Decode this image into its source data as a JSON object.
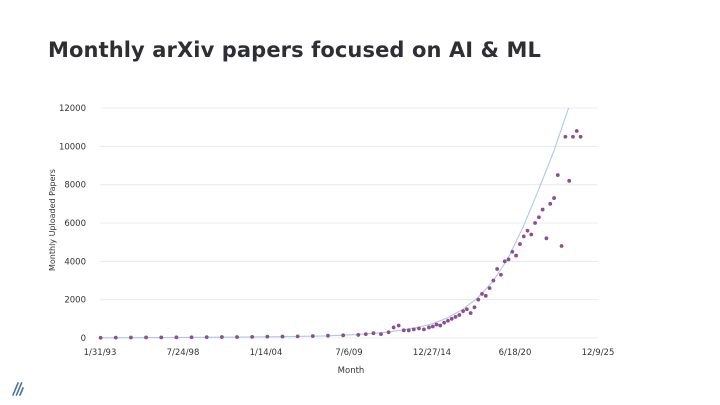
{
  "slide": {
    "title": "Monthly arXiv papers focused on AI & ML",
    "logo_icon": "diagonal-stripes-logo"
  },
  "colors": {
    "points": "#8e4f91",
    "trend": "#aec8e8",
    "grid": "#e6e6e6",
    "text": "#333333",
    "logo": "#4a6fa5"
  },
  "chart_data": {
    "type": "scatter",
    "title": "Monthly arXiv papers focused on AI & ML",
    "xlabel": "Month",
    "ylabel": "Monthly Uploaded Papers",
    "ylim": [
      0,
      12000
    ],
    "yticks": [
      0,
      2000,
      4000,
      6000,
      8000,
      10000,
      12000
    ],
    "yticklabels": [
      "0",
      "2000",
      "4000",
      "6000",
      "8000",
      "10000",
      "12000"
    ],
    "xlim": [
      "1993-01-31",
      "2025-12-09"
    ],
    "xticks": [
      "1993-01-31",
      "1998-07-24",
      "2004-01-14",
      "2009-07-06",
      "2014-12-27",
      "2020-06-18",
      "2025-12-09"
    ],
    "xticklabels": [
      "1/31/93",
      "7/24/98",
      "1/14/04",
      "7/6/09",
      "12/27/14",
      "6/18/20",
      "12/9/25"
    ],
    "grid": "horizontal",
    "legend": "none",
    "series": [
      {
        "kind": "points",
        "points": [
          [
            "1993-02",
            10
          ],
          [
            "1994-02",
            20
          ],
          [
            "1995-02",
            25
          ],
          [
            "1996-02",
            30
          ],
          [
            "1997-02",
            30
          ],
          [
            "1998-02",
            35
          ],
          [
            "1999-02",
            40
          ],
          [
            "2000-02",
            45
          ],
          [
            "2001-02",
            50
          ],
          [
            "2002-02",
            50
          ],
          [
            "2003-02",
            60
          ],
          [
            "2004-02",
            70
          ],
          [
            "2005-02",
            75
          ],
          [
            "2006-02",
            85
          ],
          [
            "2007-02",
            100
          ],
          [
            "2008-02",
            120
          ],
          [
            "2009-02",
            140
          ],
          [
            "2010-02",
            160
          ],
          [
            "2010-08",
            200
          ],
          [
            "2011-02",
            250
          ],
          [
            "2011-08",
            200
          ],
          [
            "2012-02",
            300
          ],
          [
            "2012-06",
            550
          ],
          [
            "2012-10",
            650
          ],
          [
            "2013-02",
            400
          ],
          [
            "2013-06",
            400
          ],
          [
            "2013-10",
            450
          ],
          [
            "2014-02",
            500
          ],
          [
            "2014-06",
            450
          ],
          [
            "2014-10",
            550
          ],
          [
            "2015-01",
            600
          ],
          [
            "2015-04",
            700
          ],
          [
            "2015-07",
            650
          ],
          [
            "2015-10",
            800
          ],
          [
            "2016-01",
            900
          ],
          [
            "2016-04",
            1000
          ],
          [
            "2016-07",
            1100
          ],
          [
            "2016-10",
            1200
          ],
          [
            "2017-01",
            1400
          ],
          [
            "2017-04",
            1500
          ],
          [
            "2017-07",
            1300
          ],
          [
            "2017-10",
            1600
          ],
          [
            "2018-01",
            2000
          ],
          [
            "2018-04",
            2300
          ],
          [
            "2018-07",
            2200
          ],
          [
            "2018-10",
            2600
          ],
          [
            "2019-01",
            3000
          ],
          [
            "2019-04",
            3600
          ],
          [
            "2019-07",
            3300
          ],
          [
            "2019-10",
            4000
          ],
          [
            "2020-01",
            4100
          ],
          [
            "2020-04",
            4500
          ],
          [
            "2020-07",
            4300
          ],
          [
            "2020-10",
            4900
          ],
          [
            "2021-01",
            5300
          ],
          [
            "2021-04",
            5600
          ],
          [
            "2021-07",
            5400
          ],
          [
            "2021-10",
            6000
          ],
          [
            "2022-01",
            6300
          ],
          [
            "2022-04",
            6700
          ],
          [
            "2022-07",
            5200
          ],
          [
            "2022-10",
            7000
          ],
          [
            "2023-01",
            7300
          ],
          [
            "2023-04",
            8500
          ],
          [
            "2023-07",
            4800
          ],
          [
            "2023-10",
            10500
          ],
          [
            "2024-01",
            8200
          ],
          [
            "2024-04",
            10500
          ],
          [
            "2024-07",
            10800
          ],
          [
            "2024-10",
            10500
          ]
        ]
      },
      {
        "kind": "trendline",
        "model": "exponential",
        "points": [
          [
            "1993-01-31",
            12
          ],
          [
            "2000-01-01",
            35
          ],
          [
            "2005-01-01",
            70
          ],
          [
            "2008-01-01",
            110
          ],
          [
            "2010-01-01",
            175
          ],
          [
            "2012-01-01",
            300
          ],
          [
            "2014-01-01",
            540
          ],
          [
            "2015-01-01",
            740
          ],
          [
            "2016-01-01",
            1050
          ],
          [
            "2017-01-01",
            1480
          ],
          [
            "2018-01-01",
            2100
          ],
          [
            "2019-01-01",
            2950
          ],
          [
            "2020-01-01",
            4150
          ],
          [
            "2021-01-01",
            5800
          ],
          [
            "2022-01-01",
            7700
          ],
          [
            "2023-01-01",
            9700
          ],
          [
            "2024-01-01",
            12000
          ]
        ]
      }
    ]
  }
}
